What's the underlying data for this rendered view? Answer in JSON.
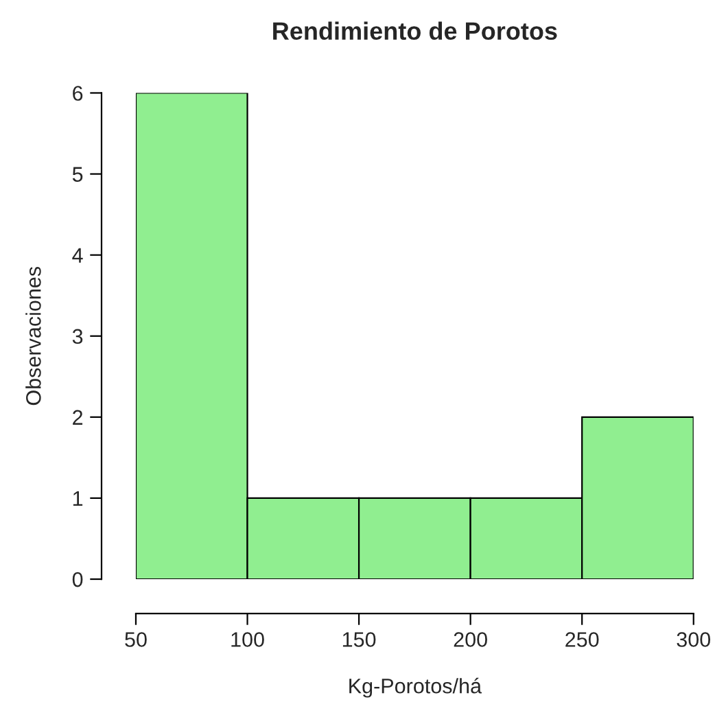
{
  "chart_data": {
    "type": "histogram",
    "title": "Rendimiento de Porotos",
    "xlabel": "Kg-Porotos/há",
    "ylabel": "Observaciones",
    "bins": [
      50,
      100,
      150,
      200,
      250,
      300
    ],
    "values": [
      6,
      1,
      1,
      1,
      2
    ],
    "color": "#90ee90",
    "xlim": [
      50,
      300
    ],
    "xticks": [
      50,
      100,
      150,
      200,
      250,
      300
    ],
    "ylim": [
      0,
      6
    ],
    "yticks": [
      0,
      1,
      2,
      3,
      4,
      5,
      6
    ],
    "grid": false
  }
}
